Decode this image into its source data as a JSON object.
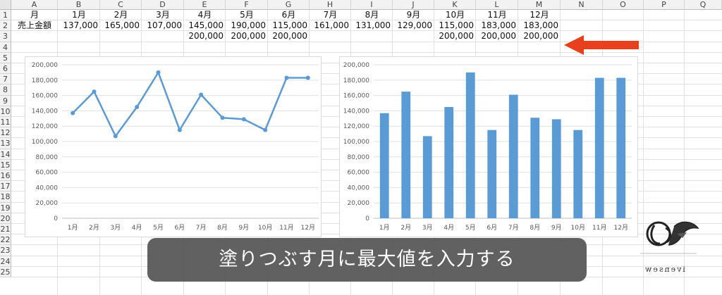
{
  "columns": [
    "A",
    "B",
    "C",
    "D",
    "E",
    "F",
    "G",
    "H",
    "I",
    "J",
    "K",
    "L",
    "M",
    "N",
    "O",
    "P",
    "Q"
  ],
  "rows": [
    "1",
    "2",
    "3",
    "4",
    "5",
    "6",
    "7",
    "8",
    "9",
    "10",
    "11",
    "12",
    "13",
    "14",
    "15",
    "16",
    "17",
    "18",
    "19",
    "20",
    "21",
    "22",
    "23",
    "24",
    "25"
  ],
  "row1": {
    "A": "月",
    "B": "1月",
    "C": "2月",
    "D": "3月",
    "E": "4月",
    "F": "5月",
    "G": "6月",
    "H": "7月",
    "I": "8月",
    "J": "9月",
    "K": "10月",
    "L": "11月",
    "M": "12月"
  },
  "row2": {
    "A": "売上金額",
    "B": "137,000",
    "C": "165,000",
    "D": "107,000",
    "E": "145,000",
    "F": "190,000",
    "G": "115,000",
    "H": "161,000",
    "I": "131,000",
    "J": "129,000",
    "K": "115,000",
    "L": "183,000",
    "M": "183,000"
  },
  "row3": {
    "E": "200,000",
    "F": "200,000",
    "G": "200,000",
    "K": "200,000",
    "L": "200,000",
    "M": "200,000"
  },
  "annotation_arrow_color": "#e8401c",
  "caption": "塗りつぶす月に最大値を入力する",
  "logo_text": "ivensew",
  "chart_data": [
    {
      "type": "line",
      "categories": [
        "1月",
        "2月",
        "3月",
        "4月",
        "5月",
        "6月",
        "7月",
        "8月",
        "9月",
        "10月",
        "11月",
        "12月"
      ],
      "series": [
        {
          "values": [
            137000,
            165000,
            107000,
            145000,
            190000,
            115000,
            161000,
            131000,
            129000,
            115000,
            183000,
            183000
          ],
          "color": "#5b9bd5"
        }
      ],
      "ylim": [
        0,
        200000
      ],
      "yticks": [
        "0",
        "20,000",
        "40,000",
        "60,000",
        "80,000",
        "100,000",
        "120,000",
        "140,000",
        "160,000",
        "180,000",
        "200,000"
      ],
      "grid": true
    },
    {
      "type": "bar",
      "categories": [
        "1月",
        "2月",
        "3月",
        "4月",
        "5月",
        "6月",
        "7月",
        "8月",
        "9月",
        "10月",
        "11月",
        "12月"
      ],
      "series": [
        {
          "values": [
            137000,
            165000,
            107000,
            145000,
            190000,
            115000,
            161000,
            131000,
            129000,
            115000,
            183000,
            183000
          ],
          "color": "#5b9bd5"
        }
      ],
      "ylim": [
        0,
        200000
      ],
      "yticks": [
        "0",
        "20,000",
        "40,000",
        "60,000",
        "80,000",
        "100,000",
        "120,000",
        "140,000",
        "160,000",
        "180,000",
        "200,000"
      ],
      "grid": true
    }
  ]
}
